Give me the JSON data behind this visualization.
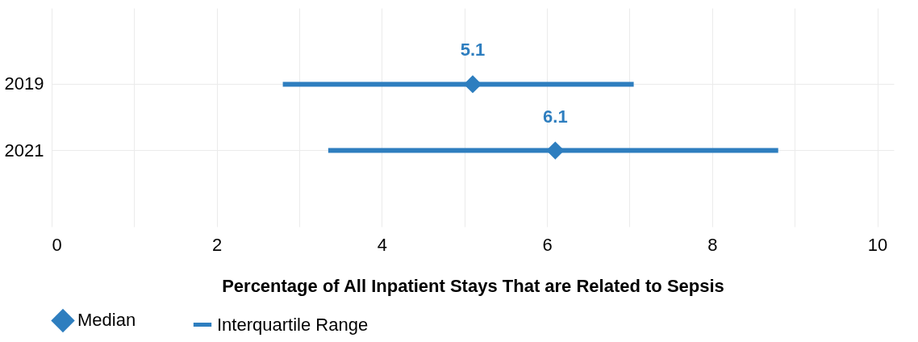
{
  "chart_data": {
    "type": "bar",
    "orientation": "horizontal",
    "xlabel": "Percentage of All Inpatient Stays That are Related to Sepsis",
    "categories": [
      "2019",
      "2021"
    ],
    "series": [
      {
        "name": "Median",
        "type": "scatter",
        "marker": "diamond",
        "color": "#2e7ebf",
        "values": [
          5.1,
          6.1
        ],
        "data_labels": true
      },
      {
        "name": "Interquartile Range",
        "color": "#2e7ebf",
        "base": [
          2.8,
          3.35
        ],
        "values": [
          4.25,
          5.45
        ]
      }
    ],
    "xlim": [
      0,
      10.2
    ],
    "xticks": [
      0,
      {
        "value": 1,
        "label": null
      },
      2,
      {
        "value": 3,
        "label": null
      },
      4,
      {
        "value": 5,
        "label": null
      },
      6,
      {
        "value": 7,
        "label": null
      },
      8,
      {
        "value": 9,
        "label": null
      },
      10
    ],
    "grid": true,
    "legend": "bottom"
  }
}
